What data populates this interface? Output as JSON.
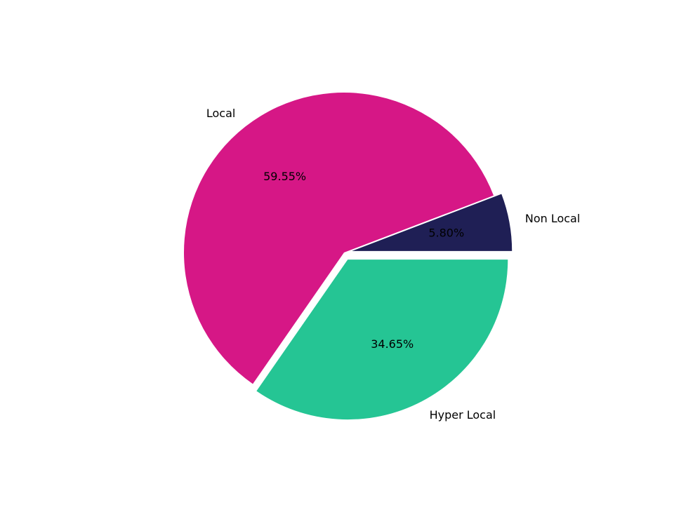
{
  "chart_data": {
    "type": "pie",
    "title": "",
    "start_angle_deg": 0,
    "direction": "counterclockwise",
    "slices": [
      {
        "label": "Non Local",
        "value": 5.8,
        "pct_label": "5.80%",
        "color": "#1f1f55",
        "explode": 0.05
      },
      {
        "label": "Local",
        "value": 59.55,
        "pct_label": "59.55%",
        "color": "#d61786",
        "explode": 0.0
      },
      {
        "label": "Hyper Local",
        "value": 34.65,
        "pct_label": "34.65%",
        "color": "#25c594",
        "explode": 0.05
      }
    ]
  }
}
